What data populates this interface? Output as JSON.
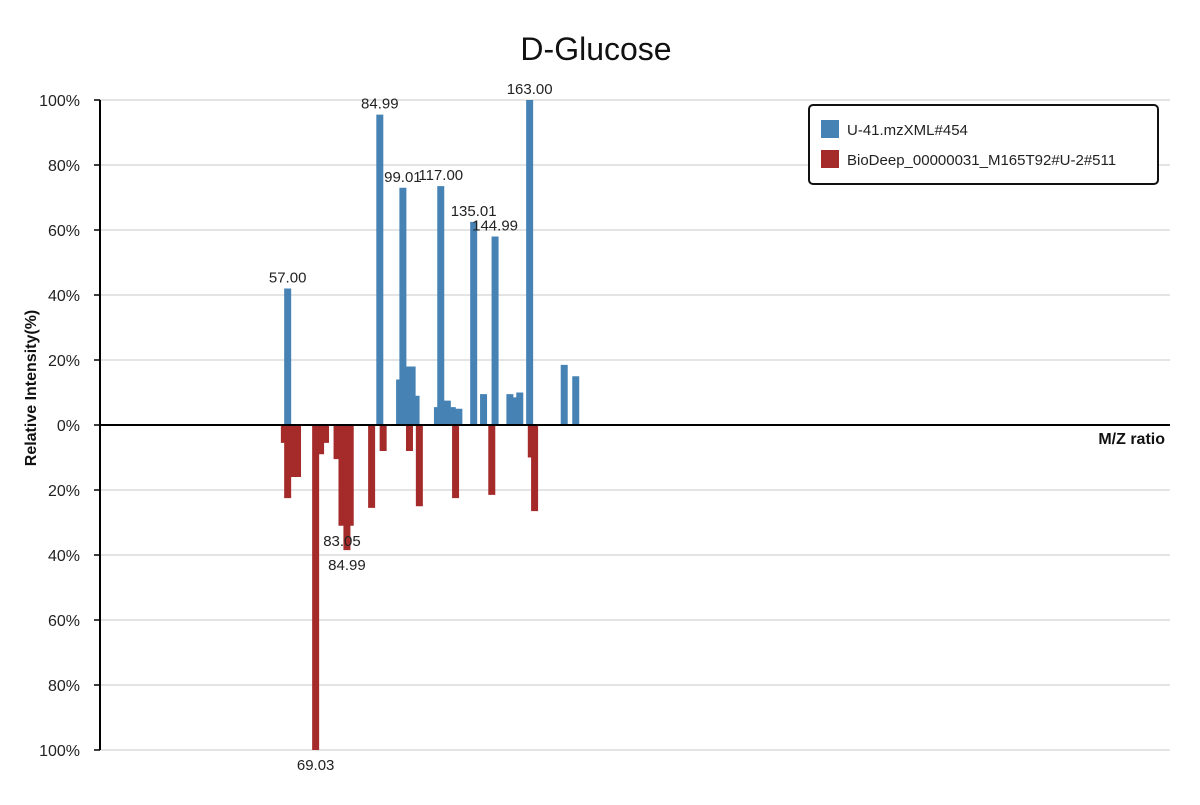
{
  "chart_data": {
    "type": "bar",
    "title": "D-Glucose",
    "xlabel": "M/Z ratio",
    "ylabel": "Relative Intensity(%)",
    "x_range": [
      0,
      325
    ],
    "ylim": [
      -100,
      100
    ],
    "y_ticks": [
      {
        "value": 100,
        "label": "100%"
      },
      {
        "value": 80,
        "label": "80%"
      },
      {
        "value": 60,
        "label": "60%"
      },
      {
        "value": 40,
        "label": "40%"
      },
      {
        "value": 20,
        "label": "20%"
      },
      {
        "value": 0,
        "label": "0%"
      },
      {
        "value": -20,
        "label": "20%"
      },
      {
        "value": -40,
        "label": "40%"
      },
      {
        "value": -60,
        "label": "60%"
      },
      {
        "value": -80,
        "label": "80%"
      },
      {
        "value": -100,
        "label": "100%"
      }
    ],
    "grid": true,
    "legend_position": "top-right",
    "series": [
      {
        "name": "U-41.mzXML#454",
        "color": "#4682B4",
        "peaks": [
          {
            "mz": 57.0,
            "intensity": 42,
            "label": "57.00"
          },
          {
            "mz": 69.03,
            "intensity": 0
          },
          {
            "mz": 84.99,
            "intensity": 95.5,
            "label": "84.99"
          },
          {
            "mz": 91.0,
            "intensity": 14
          },
          {
            "mz": 92.0,
            "intensity": 73,
            "label": "99.01"
          },
          {
            "mz": 93.5,
            "intensity": 18
          },
          {
            "mz": 94.8,
            "intensity": 18
          },
          {
            "mz": 96.0,
            "intensity": 9
          },
          {
            "mz": 102.5,
            "intensity": 5.5
          },
          {
            "mz": 103.5,
            "intensity": 73.5,
            "label": "117.00"
          },
          {
            "mz": 105.5,
            "intensity": 7.5
          },
          {
            "mz": 107.0,
            "intensity": 5.5
          },
          {
            "mz": 109.0,
            "intensity": 5
          },
          {
            "mz": 113.5,
            "intensity": 62.5,
            "label": "135.01"
          },
          {
            "mz": 116.5,
            "intensity": 9.5
          },
          {
            "mz": 120.0,
            "intensity": 58,
            "label": "144.99"
          },
          {
            "mz": 124.5,
            "intensity": 9.5
          },
          {
            "mz": 126.0,
            "intensity": 8.5
          },
          {
            "mz": 127.5,
            "intensity": 10
          },
          {
            "mz": 130.5,
            "intensity": 100,
            "label": "163.00"
          },
          {
            "mz": 141.0,
            "intensity": 18.5
          },
          {
            "mz": 144.5,
            "intensity": 15
          }
        ]
      },
      {
        "name": "BioDeep_00000031_M165T92#U-2#511",
        "color": "#A52A2A",
        "peaks": [
          {
            "mz": 56.0,
            "intensity": -5.5
          },
          {
            "mz": 57.0,
            "intensity": -22.5
          },
          {
            "mz": 58.5,
            "intensity": -16
          },
          {
            "mz": 60.0,
            "intensity": -16
          },
          {
            "mz": 65.5,
            "intensity": -100,
            "label": "69.03"
          },
          {
            "mz": 67.0,
            "intensity": -9
          },
          {
            "mz": 68.5,
            "intensity": -5.5
          },
          {
            "mz": 72.0,
            "intensity": -10.5
          },
          {
            "mz": 73.5,
            "intensity": -31,
            "label": "83.05"
          },
          {
            "mz": 75.0,
            "intensity": -38.5,
            "label": "84.99"
          },
          {
            "mz": 76.0,
            "intensity": -31
          },
          {
            "mz": 82.5,
            "intensity": -25.5
          },
          {
            "mz": 86.0,
            "intensity": -8
          },
          {
            "mz": 94.0,
            "intensity": -8
          },
          {
            "mz": 97.0,
            "intensity": -25
          },
          {
            "mz": 108.0,
            "intensity": -22.5
          },
          {
            "mz": 119.0,
            "intensity": -21.5
          },
          {
            "mz": 131.0,
            "intensity": -10
          },
          {
            "mz": 132.0,
            "intensity": -26.5
          }
        ]
      }
    ]
  }
}
